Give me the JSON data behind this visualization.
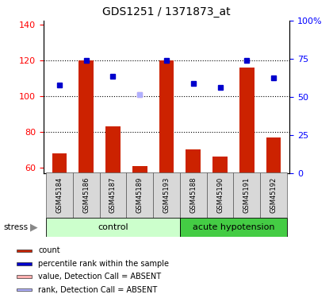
{
  "title": "GDS1251 / 1371873_at",
  "samples": [
    "GSM45184",
    "GSM45186",
    "GSM45187",
    "GSM45189",
    "GSM45193",
    "GSM45188",
    "GSM45190",
    "GSM45191",
    "GSM45192"
  ],
  "count_values": [
    68,
    120,
    83,
    61,
    120,
    70,
    66,
    116,
    77
  ],
  "rank_values": [
    106,
    120,
    111,
    null,
    120,
    107,
    105,
    120,
    110
  ],
  "absent_value_idx": [
    3
  ],
  "absent_value_val": [
    101
  ],
  "absent_rank_idx": [
    3
  ],
  "absent_rank_val": [
    101
  ],
  "ylim_left": [
    57,
    142
  ],
  "ylim_right": [
    0,
    100
  ],
  "yticks_left": [
    60,
    80,
    100,
    120,
    140
  ],
  "yticks_right": [
    0,
    25,
    50,
    75,
    100
  ],
  "ytick_right_labels": [
    "0",
    "25",
    "50",
    "75",
    "100%"
  ],
  "bar_color": "#cc2200",
  "rank_color": "#0000cc",
  "absent_val_color": "#ffb0b0",
  "absent_rank_color": "#b0b0ff",
  "ctrl_color_light": "#ccffcc",
  "ctrl_color_dark": "#44cc44",
  "bar_width": 0.55,
  "ctrl_count": 5,
  "ah_count": 4
}
